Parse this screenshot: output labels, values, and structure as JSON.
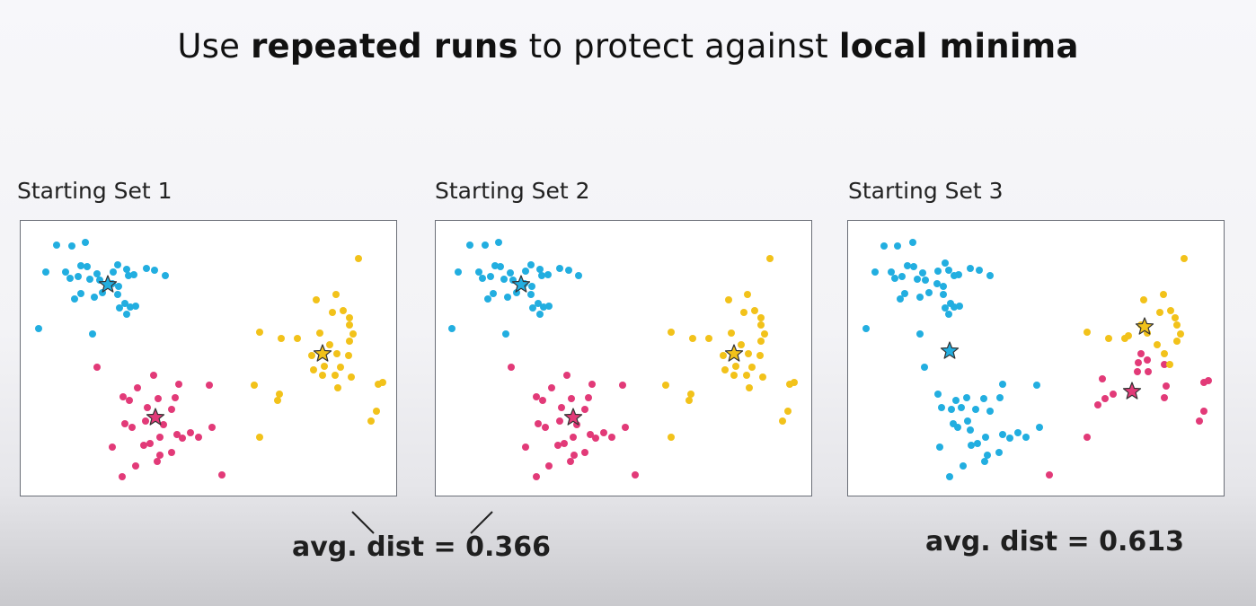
{
  "slide": {
    "title_parts": [
      {
        "text": "Use ",
        "bold": false
      },
      {
        "text": "repeated runs",
        "bold": true
      },
      {
        "text": " to protect against ",
        "bold": false
      },
      {
        "text": "local minima",
        "bold": true
      }
    ]
  },
  "colors": {
    "cyan": "#22aee0",
    "magenta": "#e23a78",
    "yellow": "#f2c21a",
    "star_stroke": "#333333"
  },
  "panels": [
    {
      "label": "Starting Set 1",
      "centroids": [
        {
          "cluster": "cyan",
          "x": 97,
          "y": 71
        },
        {
          "cluster": "yellow",
          "x": 336,
          "y": 148
        },
        {
          "cluster": "magenta",
          "x": 150,
          "y": 219
        }
      ],
      "points": {
        "cyan": [
          [
            40,
            27
          ],
          [
            57,
            28
          ],
          [
            72,
            24
          ],
          [
            28,
            57
          ],
          [
            50,
            57
          ],
          [
            67,
            50
          ],
          [
            74,
            51
          ],
          [
            85,
            59
          ],
          [
            103,
            57
          ],
          [
            118,
            54
          ],
          [
            126,
            60
          ],
          [
            140,
            53
          ],
          [
            149,
            55
          ],
          [
            161,
            61
          ],
          [
            55,
            64
          ],
          [
            64,
            62
          ],
          [
            108,
            49
          ],
          [
            120,
            61
          ],
          [
            77,
            65
          ],
          [
            88,
            66
          ],
          [
            102,
            70
          ],
          [
            109,
            73
          ],
          [
            67,
            81
          ],
          [
            60,
            87
          ],
          [
            82,
            85
          ],
          [
            91,
            80
          ],
          [
            108,
            82
          ],
          [
            116,
            92
          ],
          [
            110,
            97
          ],
          [
            122,
            96
          ],
          [
            118,
            104
          ],
          [
            128,
            95
          ],
          [
            20,
            120
          ],
          [
            80,
            126
          ]
        ],
        "magenta": [
          [
            85,
            163
          ],
          [
            148,
            172
          ],
          [
            130,
            186
          ],
          [
            153,
            198
          ],
          [
            172,
            197
          ],
          [
            176,
            182
          ],
          [
            210,
            183
          ],
          [
            114,
            196
          ],
          [
            121,
            200
          ],
          [
            141,
            208
          ],
          [
            168,
            210
          ],
          [
            139,
            223
          ],
          [
            116,
            226
          ],
          [
            124,
            230
          ],
          [
            159,
            227
          ],
          [
            155,
            241
          ],
          [
            174,
            238
          ],
          [
            213,
            230
          ],
          [
            189,
            236
          ],
          [
            198,
            241
          ],
          [
            180,
            242
          ],
          [
            144,
            248
          ],
          [
            168,
            258
          ],
          [
            155,
            261
          ],
          [
            137,
            250
          ],
          [
            102,
            252
          ],
          [
            152,
            268
          ],
          [
            128,
            273
          ],
          [
            113,
            285
          ],
          [
            224,
            283
          ]
        ],
        "yellow": [
          [
            376,
            42
          ],
          [
            351,
            82
          ],
          [
            329,
            88
          ],
          [
            366,
            108
          ],
          [
            266,
            124
          ],
          [
            290,
            131
          ],
          [
            308,
            131
          ],
          [
            333,
            125
          ],
          [
            347,
            102
          ],
          [
            359,
            100
          ],
          [
            366,
            116
          ],
          [
            370,
            126
          ],
          [
            366,
            134
          ],
          [
            344,
            138
          ],
          [
            352,
            148
          ],
          [
            365,
            150
          ],
          [
            324,
            150
          ],
          [
            326,
            166
          ],
          [
            338,
            162
          ],
          [
            336,
            172
          ],
          [
            356,
            163
          ],
          [
            350,
            172
          ],
          [
            368,
            174
          ],
          [
            353,
            186
          ],
          [
            260,
            183
          ],
          [
            286,
            200
          ],
          [
            288,
            193
          ],
          [
            403,
            180
          ],
          [
            398,
            182
          ],
          [
            396,
            212
          ],
          [
            390,
            223
          ],
          [
            266,
            241
          ]
        ]
      }
    },
    {
      "label": "Starting Set 2",
      "centroids": [
        {
          "cluster": "cyan",
          "x": 95,
          "y": 71
        },
        {
          "cluster": "yellow",
          "x": 332,
          "y": 148
        },
        {
          "cluster": "magenta",
          "x": 153,
          "y": 219
        }
      ],
      "points": {
        "cyan": [
          [
            38,
            27
          ],
          [
            55,
            27
          ],
          [
            70,
            24
          ],
          [
            25,
            57
          ],
          [
            48,
            57
          ],
          [
            66,
            50
          ],
          [
            72,
            51
          ],
          [
            83,
            58
          ],
          [
            100,
            56
          ],
          [
            116,
            54
          ],
          [
            125,
            60
          ],
          [
            138,
            53
          ],
          [
            148,
            55
          ],
          [
            159,
            61
          ],
          [
            52,
            64
          ],
          [
            61,
            62
          ],
          [
            106,
            49
          ],
          [
            118,
            61
          ],
          [
            76,
            65
          ],
          [
            86,
            66
          ],
          [
            99,
            70
          ],
          [
            107,
            73
          ],
          [
            64,
            81
          ],
          [
            58,
            87
          ],
          [
            80,
            85
          ],
          [
            90,
            80
          ],
          [
            106,
            82
          ],
          [
            114,
            92
          ],
          [
            108,
            97
          ],
          [
            120,
            96
          ],
          [
            116,
            104
          ],
          [
            126,
            95
          ],
          [
            18,
            120
          ],
          [
            78,
            126
          ]
        ],
        "magenta": [
          [
            84,
            163
          ],
          [
            146,
            172
          ],
          [
            129,
            186
          ],
          [
            151,
            198
          ],
          [
            170,
            197
          ],
          [
            174,
            182
          ],
          [
            208,
            183
          ],
          [
            112,
            196
          ],
          [
            119,
            200
          ],
          [
            140,
            208
          ],
          [
            166,
            210
          ],
          [
            138,
            223
          ],
          [
            114,
            226
          ],
          [
            122,
            230
          ],
          [
            157,
            227
          ],
          [
            153,
            241
          ],
          [
            172,
            238
          ],
          [
            211,
            230
          ],
          [
            187,
            236
          ],
          [
            196,
            241
          ],
          [
            178,
            242
          ],
          [
            143,
            248
          ],
          [
            166,
            258
          ],
          [
            154,
            261
          ],
          [
            136,
            250
          ],
          [
            100,
            252
          ],
          [
            150,
            268
          ],
          [
            126,
            273
          ],
          [
            112,
            285
          ],
          [
            222,
            283
          ]
        ],
        "yellow": [
          [
            372,
            42
          ],
          [
            347,
            82
          ],
          [
            326,
            88
          ],
          [
            362,
            108
          ],
          [
            262,
            124
          ],
          [
            286,
            131
          ],
          [
            304,
            131
          ],
          [
            329,
            125
          ],
          [
            343,
            102
          ],
          [
            355,
            100
          ],
          [
            362,
            116
          ],
          [
            366,
            126
          ],
          [
            362,
            134
          ],
          [
            340,
            138
          ],
          [
            348,
            148
          ],
          [
            361,
            150
          ],
          [
            320,
            150
          ],
          [
            322,
            166
          ],
          [
            334,
            162
          ],
          [
            332,
            172
          ],
          [
            352,
            163
          ],
          [
            346,
            172
          ],
          [
            364,
            174
          ],
          [
            349,
            186
          ],
          [
            256,
            183
          ],
          [
            282,
            200
          ],
          [
            284,
            193
          ],
          [
            399,
            180
          ],
          [
            394,
            182
          ],
          [
            392,
            212
          ],
          [
            386,
            223
          ],
          [
            262,
            241
          ]
        ]
      }
    },
    {
      "label": "Starting Set 3",
      "centroids": [
        {
          "cluster": "yellow",
          "x": 330,
          "y": 118
        },
        {
          "cluster": "cyan",
          "x": 113,
          "y": 145
        },
        {
          "cluster": "magenta",
          "x": 316,
          "y": 190
        }
      ],
      "points": {
        "cyan": [
          [
            40,
            28
          ],
          [
            55,
            28
          ],
          [
            72,
            24
          ],
          [
            30,
            57
          ],
          [
            48,
            57
          ],
          [
            66,
            50
          ],
          [
            73,
            51
          ],
          [
            83,
            58
          ],
          [
            100,
            56
          ],
          [
            112,
            55
          ],
          [
            123,
            60
          ],
          [
            136,
            53
          ],
          [
            146,
            55
          ],
          [
            158,
            61
          ],
          [
            52,
            64
          ],
          [
            60,
            62
          ],
          [
            108,
            47
          ],
          [
            118,
            61
          ],
          [
            77,
            65
          ],
          [
            86,
            66
          ],
          [
            99,
            70
          ],
          [
            106,
            73
          ],
          [
            63,
            81
          ],
          [
            58,
            87
          ],
          [
            80,
            85
          ],
          [
            90,
            80
          ],
          [
            106,
            82
          ],
          [
            114,
            92
          ],
          [
            108,
            97
          ],
          [
            118,
            96
          ],
          [
            112,
            104
          ],
          [
            124,
            95
          ],
          [
            20,
            120
          ],
          [
            80,
            126
          ],
          [
            85,
            163
          ],
          [
            100,
            193
          ],
          [
            120,
            200
          ],
          [
            132,
            197
          ],
          [
            151,
            198
          ],
          [
            169,
            197
          ],
          [
            172,
            182
          ],
          [
            210,
            183
          ],
          [
            104,
            208
          ],
          [
            115,
            210
          ],
          [
            126,
            208
          ],
          [
            142,
            210
          ],
          [
            158,
            212
          ],
          [
            133,
            223
          ],
          [
            117,
            226
          ],
          [
            122,
            230
          ],
          [
            136,
            233
          ],
          [
            153,
            241
          ],
          [
            172,
            238
          ],
          [
            213,
            230
          ],
          [
            189,
            236
          ],
          [
            198,
            241
          ],
          [
            180,
            242
          ],
          [
            144,
            248
          ],
          [
            168,
            258
          ],
          [
            155,
            261
          ],
          [
            137,
            250
          ],
          [
            102,
            252
          ],
          [
            152,
            268
          ],
          [
            128,
            273
          ],
          [
            113,
            285
          ]
        ],
        "magenta": [
          [
            326,
            148
          ],
          [
            323,
            158
          ],
          [
            333,
            155
          ],
          [
            322,
            168
          ],
          [
            334,
            168
          ],
          [
            352,
            160
          ],
          [
            283,
            176
          ],
          [
            286,
            198
          ],
          [
            295,
            193
          ],
          [
            278,
            205
          ],
          [
            354,
            184
          ],
          [
            352,
            197
          ],
          [
            396,
            180
          ],
          [
            401,
            178
          ],
          [
            396,
            212
          ],
          [
            391,
            223
          ],
          [
            266,
            241
          ],
          [
            224,
            283
          ]
        ],
        "yellow": [
          [
            374,
            42
          ],
          [
            351,
            82
          ],
          [
            329,
            88
          ],
          [
            364,
            108
          ],
          [
            266,
            124
          ],
          [
            290,
            131
          ],
          [
            308,
            131
          ],
          [
            333,
            125
          ],
          [
            347,
            102
          ],
          [
            359,
            100
          ],
          [
            366,
            116
          ],
          [
            370,
            126
          ],
          [
            366,
            134
          ],
          [
            344,
            138
          ],
          [
            352,
            148
          ],
          [
            358,
            160
          ],
          [
            312,
            128
          ],
          [
            326,
            116
          ]
        ]
      }
    }
  ],
  "results": [
    {
      "text": "avg. dist = 0.366"
    },
    {
      "text": "avg. dist = 0.613"
    }
  ]
}
